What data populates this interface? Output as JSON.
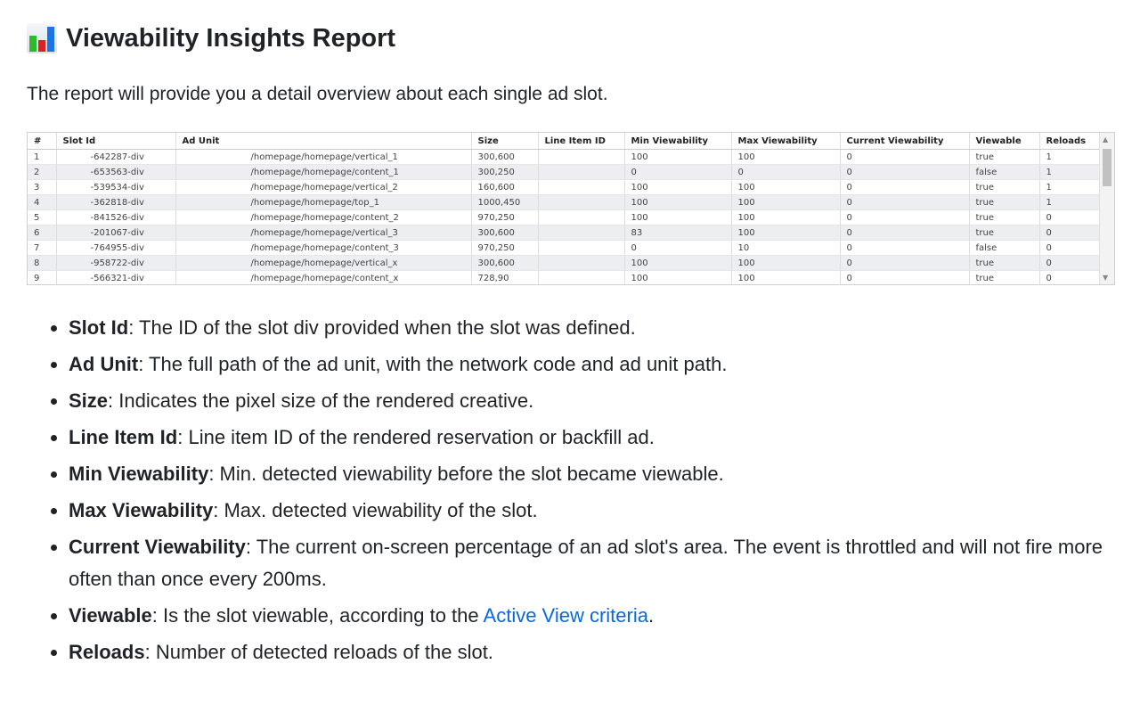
{
  "header": {
    "title": "Viewability Insights Report",
    "icon": "bar-chart-icon"
  },
  "intro": "The report will provide you a detail overview about each single ad slot.",
  "table": {
    "columns": [
      "#",
      "Slot Id",
      "Ad Unit",
      "Size",
      "Line Item ID",
      "Min Viewability",
      "Max Viewability",
      "Current Viewability",
      "Viewable",
      "Reloads"
    ],
    "rows": [
      [
        "1",
        "-642287-div",
        "/homepage/homepage/vertical_1",
        "300,600",
        "",
        "100",
        "100",
        "0",
        "true",
        "1"
      ],
      [
        "2",
        "-653563-div",
        "/homepage/homepage/content_1",
        "300,250",
        "",
        "0",
        "0",
        "0",
        "false",
        "1"
      ],
      [
        "3",
        "-539534-div",
        "/homepage/homepage/vertical_2",
        "160,600",
        "",
        "100",
        "100",
        "0",
        "true",
        "1"
      ],
      [
        "4",
        "-362818-div",
        "/homepage/homepage/top_1",
        "1000,450",
        "",
        "100",
        "100",
        "0",
        "true",
        "1"
      ],
      [
        "5",
        "-841526-div",
        "/homepage/homepage/content_2",
        "970,250",
        "",
        "100",
        "100",
        "0",
        "true",
        "0"
      ],
      [
        "6",
        "-201067-div",
        "/homepage/homepage/vertical_3",
        "300,600",
        "",
        "83",
        "100",
        "0",
        "true",
        "0"
      ],
      [
        "7",
        "-764955-div",
        "/homepage/homepage/content_3",
        "970,250",
        "",
        "0",
        "10",
        "0",
        "false",
        "0"
      ],
      [
        "8",
        "-958722-div",
        "/homepage/homepage/vertical_x",
        "300,600",
        "",
        "100",
        "100",
        "0",
        "true",
        "0"
      ],
      [
        "9",
        "-566321-div",
        "/homepage/homepage/content_x",
        "728,90",
        "",
        "100",
        "100",
        "0",
        "true",
        "0"
      ]
    ]
  },
  "definitions": [
    {
      "term": "Slot Id",
      "text": ": The ID of the slot div provided when the slot was defined."
    },
    {
      "term": "Ad Unit",
      "text": ": The full path of the ad unit, with the network code and ad unit path."
    },
    {
      "term": "Size",
      "text": ": Indicates the pixel size of the rendered creative."
    },
    {
      "term": "Line Item Id",
      "text": ": Line item ID of the rendered reservation or backfill ad."
    },
    {
      "term": "Min Viewability",
      "text": ": Min. detected viewability before the slot became viewable."
    },
    {
      "term": "Max Viewability",
      "text": ": Max. detected viewability of the slot."
    },
    {
      "term": "Current Viewability",
      "text": ": The current on-screen percentage of an ad slot's area. The event is throttled and will not fire more often than once every 200ms."
    },
    {
      "term": "Viewable",
      "text": ": Is the slot viewable, according to the ",
      "link": "Active View criteria",
      "after": "."
    },
    {
      "term": "Reloads",
      "text": ": Number of detected reloads of the slot."
    }
  ],
  "colors": {
    "link": "#0969da",
    "bar1": "#2db82d",
    "bar2": "#e02020",
    "bar3": "#1a73e8"
  }
}
